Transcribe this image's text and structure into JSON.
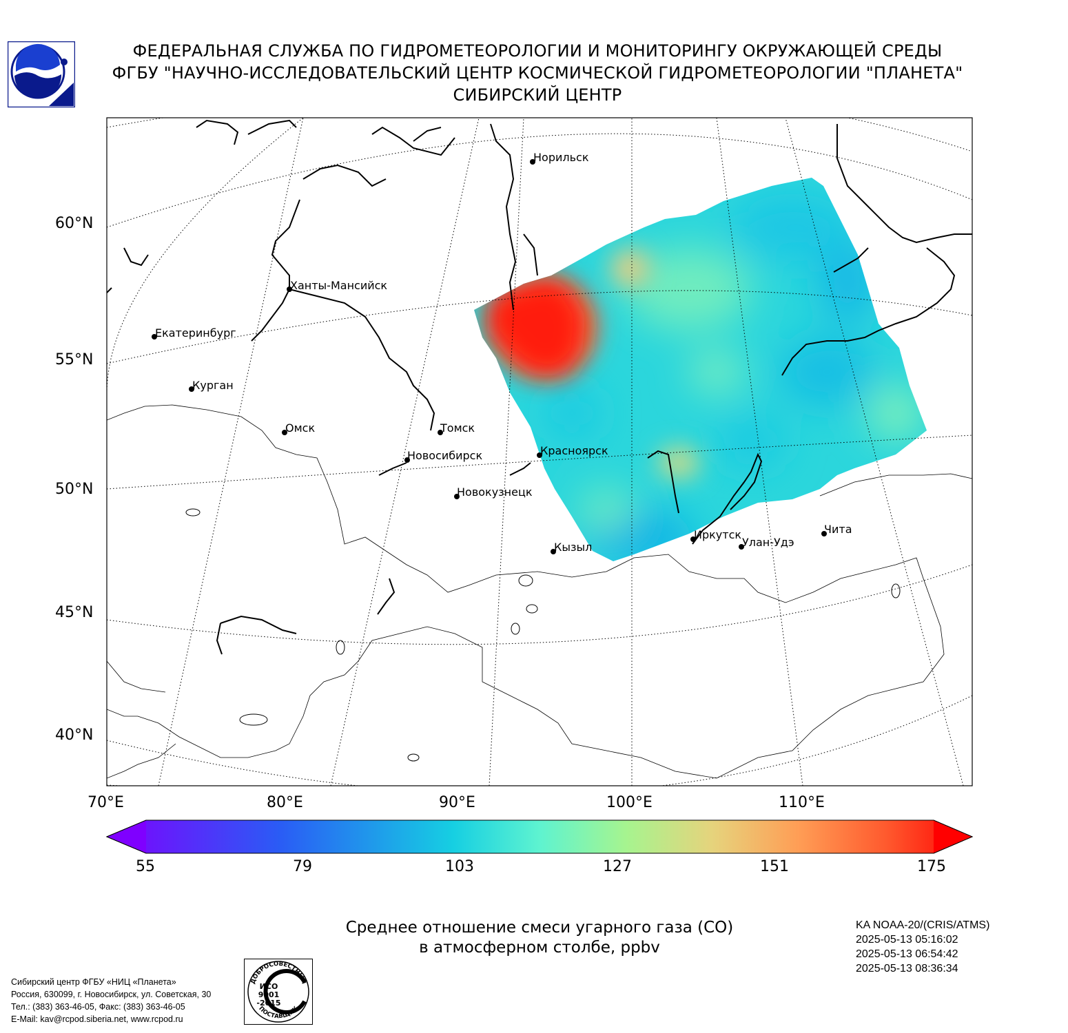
{
  "header": {
    "line1": "ФЕДЕРАЛЬНАЯ СЛУЖБА ПО ГИДРОМЕТЕОРОЛОГИИ И МОНИТОРИНГУ ОКРУЖАЮЩЕЙ СРЕДЫ",
    "line2": "ФГБУ \"НАУЧНО-ИССЛЕДОВАТЕЛЬСКИЙ ЦЕНТР КОСМИЧЕСКОЙ ГИДРОМЕТЕОРОЛОГИИ \"ПЛАНЕТА\"",
    "line3": "СИБИРСКИЙ ЦЕНТР"
  },
  "map": {
    "lat_labels": [
      "60°N",
      "55°N",
      "50°N",
      "45°N",
      "40°N"
    ],
    "lon_labels": [
      "70°E",
      "80°E",
      "90°E",
      "100°E",
      "110°E"
    ],
    "cities": [
      "Норильск",
      "Ханты-Мансийск",
      "Екатеринбург",
      "Курган",
      "Омск",
      "Томск",
      "Новосибирск",
      "Красноярск",
      "Новокузнецк",
      "Кызыл",
      "Иркутск",
      "Улан-Удэ",
      "Чита"
    ],
    "colors": {
      "high": "#ff1e0f",
      "mid": "#7fefb8",
      "base": "#2ad4de",
      "low": "#0fb0e6"
    }
  },
  "colorbar": {
    "ticks": [
      "55",
      "79",
      "103",
      "127",
      "151",
      "175"
    ],
    "min": 55,
    "max": 175
  },
  "caption": {
    "line1": "Среднее отношение смеси угарного газа (CO)",
    "line2": "в атмосферном столбе, ppbv"
  },
  "satellite": {
    "name": "KA NOAA-20/(CRIS/ATMS)",
    "times": [
      "2025-05-13 05:16:02",
      "2025-05-13 06:54:42",
      "2025-05-13 08:36:34"
    ]
  },
  "organization": {
    "lines": [
      "Сибирский центр ФГБУ «НИЦ «Планета»",
      "Россия, 630099, г. Новосибирск, ул. Советская, 30",
      "Тел.: (383) 363-46-05, Факс: (383) 363-46-05",
      "E-Mail: kav@rcpod.siberia.net, www.rcpod.ru"
    ]
  },
  "iso": {
    "top_text": "ДОБРОСОВЕСТНЫЙ",
    "line1": "ИСО",
    "line2": "9001",
    "line3": "-2015",
    "bottom_text": "ПОСТАВЩИК"
  }
}
